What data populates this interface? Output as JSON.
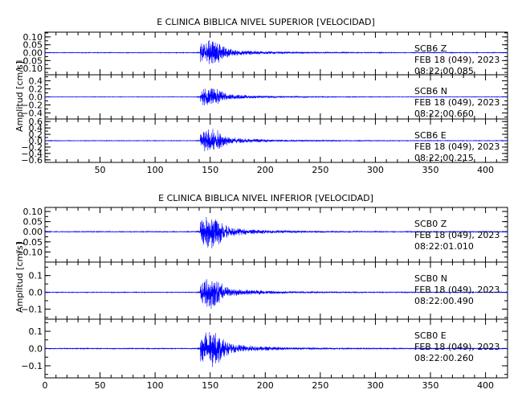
{
  "chart_data": [
    {
      "type": "line",
      "title": "E CLINICA BIBLICA NIVEL SUPERIOR [VELOCIDAD]",
      "ylabel": "Amplitud [cm/s]",
      "xlim": [
        0,
        420
      ],
      "xticks": [
        50,
        100,
        150,
        200,
        250,
        300,
        350,
        400
      ],
      "line_color": "#0000ff",
      "panels": [
        {
          "station": "SCB6",
          "component": "Z",
          "date": "FEB 18 (049), 2023",
          "time": "08:22:00.085",
          "ylim": [
            -0.14,
            0.13
          ],
          "yticks": [
            -0.1,
            -0.05,
            0.0,
            0.05,
            0.1
          ],
          "ytick_labels": [
            "−0.10",
            "−0.05",
            "0.00",
            "0.05",
            "0.10"
          ],
          "peak_amplitude": 0.12
        },
        {
          "station": "SCB6",
          "component": "N",
          "date": "FEB 18 (049), 2023",
          "time": "08:22:00.660",
          "ylim": [
            -0.55,
            0.55
          ],
          "yticks": [
            -0.4,
            -0.2,
            0.0,
            0.2,
            0.4
          ],
          "ytick_labels": [
            "−0.4",
            "−0.2",
            "0.0",
            "0.2",
            "0.4"
          ],
          "peak_amplitude": 0.35
        },
        {
          "station": "SCB6",
          "component": "E",
          "date": "FEB 18 (049), 2023",
          "time": "08:22:00.215",
          "ylim": [
            -0.68,
            0.68
          ],
          "yticks": [
            -0.6,
            -0.4,
            -0.2,
            0.0,
            0.2,
            0.4,
            0.6
          ],
          "ytick_labels": [
            "−0.6",
            "−0.4",
            "−0.2",
            "0.0",
            "0.2",
            "0.4",
            "0.6"
          ],
          "peak_amplitude": 0.55
        }
      ]
    },
    {
      "type": "line",
      "title": "E CLINICA BIBLICA NIVEL INFERIOR [VELOCIDAD]",
      "ylabel": "Amplitud [cm/s]",
      "xlim": [
        0,
        420
      ],
      "xticks": [
        0,
        50,
        100,
        150,
        200,
        250,
        300,
        350,
        400
      ],
      "line_color": "#0000ff",
      "panels": [
        {
          "station": "SCB0",
          "component": "Z",
          "date": "FEB 18 (049), 2023",
          "time": "08:22:01.010",
          "ylim": [
            -0.15,
            0.12
          ],
          "yticks": [
            -0.1,
            -0.05,
            0.0,
            0.05,
            0.1
          ],
          "ytick_labels": [
            "−0.10",
            "−0.05",
            "0.00",
            "0.05",
            "0.10"
          ],
          "peak_amplitude": 0.12
        },
        {
          "station": "SCB0",
          "component": "N",
          "date": "FEB 18 (049), 2023",
          "time": "08:22:00.490",
          "ylim": [
            -0.16,
            0.18
          ],
          "yticks": [
            -0.1,
            0.0,
            0.1
          ],
          "ytick_labels": [
            "−0.1",
            "0.0",
            "0.1"
          ],
          "peak_amplitude": 0.13
        },
        {
          "station": "SCB0",
          "component": "E",
          "date": "FEB 18 (049), 2023",
          "time": "08:22:00.260",
          "ylim": [
            -0.17,
            0.17
          ],
          "yticks": [
            -0.1,
            0.0,
            0.1
          ],
          "ytick_labels": [
            "−0.1",
            "0.0",
            "0.1"
          ],
          "peak_amplitude": 0.15
        }
      ]
    }
  ]
}
